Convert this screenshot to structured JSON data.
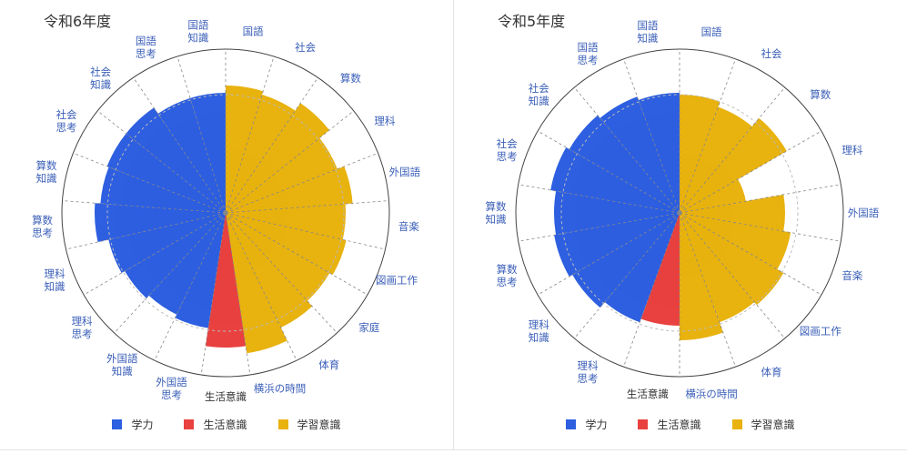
{
  "colors": {
    "gakuryoku": "#2d5fe0",
    "seikatsu": "#e8413f",
    "gakushu": "#e8b20f",
    "axis": "#777777",
    "label": "#3b5fb8"
  },
  "legend": [
    {
      "label": "学力",
      "color": "#2d5fe0"
    },
    {
      "label": "生活意識",
      "color": "#e8413f"
    },
    {
      "label": "学習意識",
      "color": "#e8b20f"
    }
  ],
  "chart_data": [
    {
      "type": "polar-area",
      "title": "令和6年度",
      "center_label": "生活意識",
      "categories": [
        "国語",
        "社会",
        "算数",
        "理科",
        "外国語",
        "音楽",
        "図画工作",
        "家庭",
        "体育",
        "横浜の時間",
        "生活意識",
        "外国語\n思考",
        "外国語\n知識",
        "理科\n思考",
        "理科\n知識",
        "算数\n思考",
        "算数\n知識",
        "社会\n思考",
        "社会\n知識",
        "国語\n思考",
        "国語\n知識"
      ],
      "groups": [
        "学習意識",
        "学習意識",
        "学習意識",
        "学習意識",
        "学習意識",
        "学習意識",
        "学習意識",
        "学習意識",
        "学習意識",
        "学習意識",
        "生活意識",
        "学力",
        "学力",
        "学力",
        "学力",
        "学力",
        "学力",
        "学力",
        "学力",
        "学力",
        "学力"
      ],
      "values": [
        70,
        68,
        73,
        66,
        70,
        66,
        68,
        66,
        70,
        78,
        74,
        64,
        62,
        64,
        66,
        72,
        69,
        70,
        70,
        66,
        66
      ],
      "reference": 65,
      "rmax": 100
    },
    {
      "type": "polar-area",
      "title": "令和5年度",
      "center_label": "生活意識",
      "categories": [
        "国語",
        "社会",
        "算数",
        "理科",
        "外国語",
        "音楽",
        "図画工作",
        "体育",
        "横浜の時間",
        "生活意識",
        "理科\n思考",
        "理科\n知識",
        "算数\n思考",
        "算数\n知識",
        "社会\n思考",
        "社会\n知識",
        "国語\n思考",
        "国語\n知識"
      ],
      "groups": [
        "学習意識",
        "学習意識",
        "学習意識",
        "学習意識",
        "学習意識",
        "学習意識",
        "学習意識",
        "学習意識",
        "学習意識",
        "生活意識",
        "学力",
        "学力",
        "学力",
        "学力",
        "学力",
        "学力",
        "学力",
        "学力"
      ],
      "values": [
        65,
        62,
        68,
        37,
        58,
        62,
        66,
        64,
        70,
        62,
        64,
        68,
        70,
        69,
        72,
        70,
        68,
        66
      ],
      "reference": 65,
      "rmax": 100
    }
  ]
}
